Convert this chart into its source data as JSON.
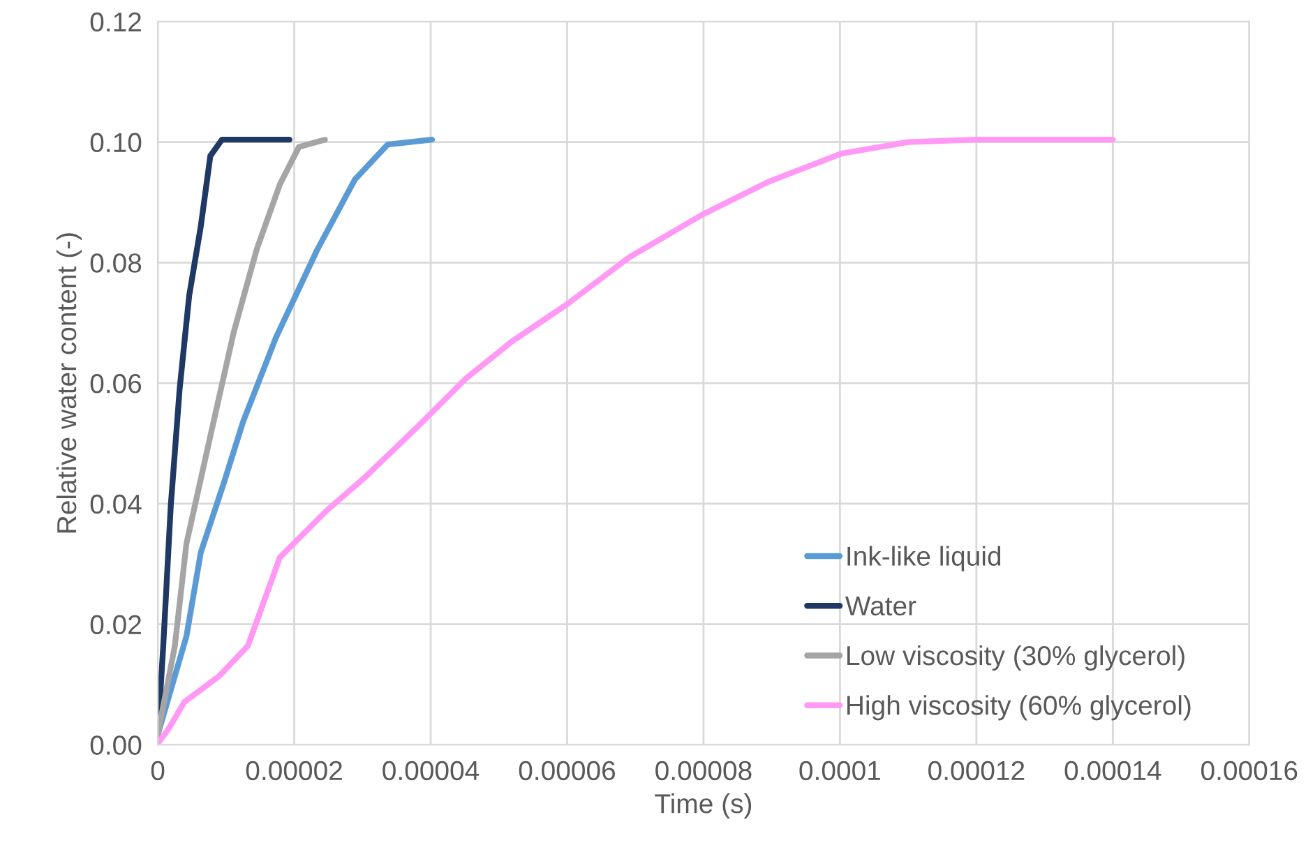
{
  "chart_data": {
    "type": "line",
    "xlabel": "Time (s)",
    "ylabel": "Relative water content (-)",
    "xlim": [
      0,
      0.00016
    ],
    "ylim": [
      0,
      0.12
    ],
    "xticks": [
      0,
      {
        "value": 2e-05,
        "label": "0.00002"
      },
      {
        "value": 4e-05,
        "label": "0.00004"
      },
      {
        "value": 6e-05,
        "label": "0.00006"
      },
      {
        "value": 8e-05,
        "label": "0.00008"
      },
      {
        "value": 0.0001,
        "label": "0.0001"
      },
      {
        "value": 0.00012,
        "label": "0.00012"
      },
      {
        "value": 0.00014,
        "label": "0.00014"
      },
      {
        "value": 0.00016,
        "label": "0.00016"
      }
    ],
    "yticks": [
      {
        "value": 0,
        "label": "0.00"
      },
      {
        "value": 0.02,
        "label": "0.02"
      },
      {
        "value": 0.04,
        "label": "0.04"
      },
      {
        "value": 0.06,
        "label": "0.06"
      },
      {
        "value": 0.08,
        "label": "0.08"
      },
      {
        "value": 0.1,
        "label": "0.10"
      },
      {
        "value": 0.12,
        "label": "0.12"
      }
    ],
    "grid": true,
    "legend": "bottom right",
    "marker": "none",
    "line_style": "solid",
    "series": [
      {
        "name": "Ink-like liquid",
        "color": "#5b9bd5",
        "x": [
          0,
          4.2e-06,
          6.3e-06,
          9.7e-06,
          1.25e-05,
          1.73e-05,
          2.34e-05,
          2.89e-05,
          3.37e-05,
          4.02e-05
        ],
        "values": [
          0.0017,
          0.018,
          0.0319,
          0.0435,
          0.0536,
          0.0675,
          0.0822,
          0.0938,
          0.0996,
          0.1004
        ]
      },
      {
        "name": "Water",
        "color": "#1f3864",
        "x": [
          0,
          8e-07,
          1.9e-06,
          3.2e-06,
          4.6e-06,
          6.3e-06,
          7.7e-06,
          9.4e-06,
          1.93e-05
        ],
        "values": [
          0.0017,
          0.0164,
          0.0396,
          0.059,
          0.0745,
          0.086,
          0.0977,
          0.1004,
          0.1004
        ]
      },
      {
        "name": "Low viscosity (30% glycerol)",
        "color": "#a5a5a5",
        "x": [
          0,
          2.5e-06,
          4.2e-06,
          7.7e-06,
          1.11e-05,
          1.45e-05,
          1.79e-05,
          2.07e-05,
          2.45e-05
        ],
        "values": [
          0.0017,
          0.0164,
          0.0334,
          0.0512,
          0.0683,
          0.0822,
          0.093,
          0.0992,
          0.1004
        ]
      },
      {
        "name": "High viscosity (60% glycerol)",
        "color": "#ff99f5",
        "x": [
          0,
          1.5e-06,
          3.9e-06,
          9e-06,
          1.32e-05,
          1.79e-05,
          2.48e-05,
          3.03e-05,
          3.83e-05,
          4.51e-05,
          5.19e-05,
          6e-05,
          6.9e-05,
          7.99e-05,
          8.95e-05,
          0.0001002,
          0.00011,
          0.00012,
          0.00014
        ],
        "values": [
          0.0002,
          0.0025,
          0.0071,
          0.0114,
          0.0164,
          0.0311,
          0.0389,
          0.0443,
          0.053,
          0.0607,
          0.0669,
          0.0731,
          0.0808,
          0.088,
          0.0934,
          0.0981,
          0.1,
          0.1004,
          0.1004
        ]
      }
    ]
  }
}
